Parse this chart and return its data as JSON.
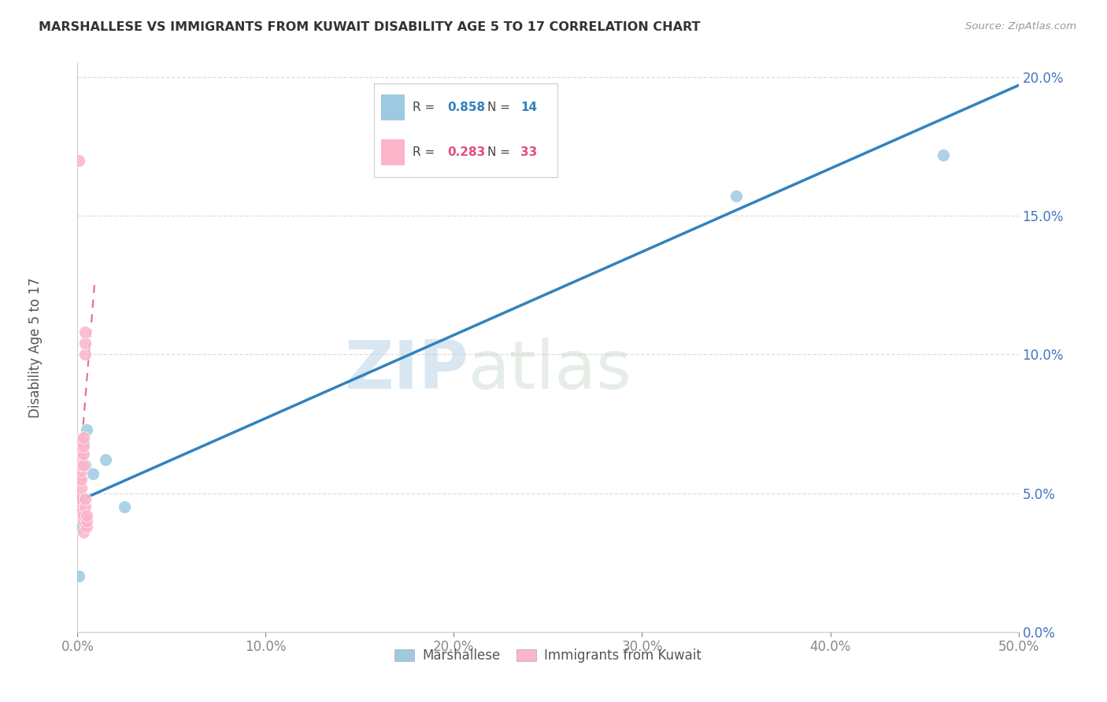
{
  "title": "MARSHALLESE VS IMMIGRANTS FROM KUWAIT DISABILITY AGE 5 TO 17 CORRELATION CHART",
  "source": "Source: ZipAtlas.com",
  "ylabel": "Disability Age 5 to 17",
  "blue_R": 0.858,
  "blue_N": 14,
  "pink_R": 0.283,
  "pink_N": 33,
  "xlim": [
    0.0,
    0.5
  ],
  "ylim": [
    0.0,
    0.205
  ],
  "x_ticks": [
    0.0,
    0.1,
    0.2,
    0.3,
    0.4,
    0.5
  ],
  "y_ticks": [
    0.0,
    0.05,
    0.1,
    0.15,
    0.2
  ],
  "blue_scatter_x": [
    0.0005,
    0.0008,
    0.001,
    0.001,
    0.002,
    0.002,
    0.003,
    0.004,
    0.005,
    0.008,
    0.015,
    0.025,
    0.35,
    0.46
  ],
  "blue_scatter_y": [
    0.02,
    0.038,
    0.057,
    0.063,
    0.06,
    0.065,
    0.068,
    0.06,
    0.073,
    0.057,
    0.062,
    0.045,
    0.157,
    0.172
  ],
  "blue_line_x": [
    0.0,
    0.5
  ],
  "blue_line_y": [
    0.047,
    0.197
  ],
  "pink_scatter_x": [
    0.0005,
    0.001,
    0.001,
    0.001,
    0.001,
    0.001,
    0.001,
    0.001,
    0.001,
    0.001,
    0.001,
    0.002,
    0.002,
    0.002,
    0.002,
    0.002,
    0.002,
    0.002,
    0.003,
    0.003,
    0.003,
    0.003,
    0.003,
    0.003,
    0.003,
    0.004,
    0.004,
    0.004,
    0.004,
    0.004,
    0.005,
    0.005,
    0.005
  ],
  "pink_scatter_y": [
    0.17,
    0.055,
    0.057,
    0.059,
    0.061,
    0.063,
    0.065,
    0.067,
    0.069,
    0.043,
    0.045,
    0.041,
    0.043,
    0.048,
    0.052,
    0.055,
    0.058,
    0.06,
    0.036,
    0.04,
    0.042,
    0.06,
    0.064,
    0.067,
    0.07,
    0.1,
    0.104,
    0.108,
    0.045,
    0.048,
    0.038,
    0.04,
    0.042
  ],
  "pink_line_x": [
    -0.002,
    0.009
  ],
  "pink_line_y": [
    0.032,
    0.125
  ],
  "legend_label_blue": "Marshallese",
  "legend_label_pink": "Immigrants from Kuwait",
  "blue_color": "#9ecae1",
  "pink_color": "#fbb4ca",
  "blue_line_color": "#3182bd",
  "pink_line_color": "#e0507a",
  "background_color": "#ffffff",
  "watermark_zip": "ZIP",
  "watermark_atlas": "atlas",
  "grid_color": "#dddddd",
  "spine_color": "#cccccc",
  "tick_color_x": "#888888",
  "tick_color_y": "#4472c4",
  "title_color": "#333333",
  "source_color": "#999999"
}
